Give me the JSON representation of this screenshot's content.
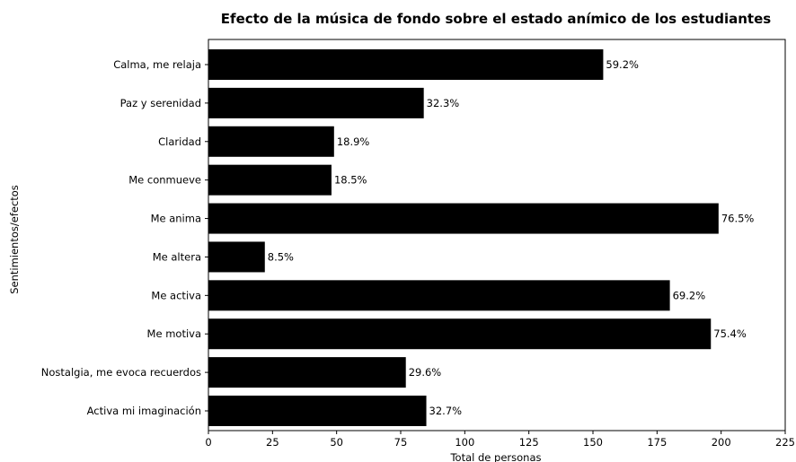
{
  "chart_data": {
    "type": "bar",
    "orientation": "horizontal",
    "title": "Efecto de la música de fondo sobre el estado anímico de los estudiantes",
    "xlabel": "Total de personas",
    "ylabel": "Sentimientos/efectos",
    "xlim": [
      0,
      225
    ],
    "xticks": [
      0,
      25,
      50,
      75,
      100,
      125,
      150,
      175,
      200,
      225
    ],
    "grid": false,
    "bar_color": "#000000",
    "categories": [
      "Calma, me relaja",
      "Paz y serenidad",
      "Claridad",
      "Me conmueve",
      "Me anima",
      "Me altera",
      "Me activa",
      "Me motiva",
      "Nostalgia, me evoca recuerdos",
      "Activa mi imaginación"
    ],
    "values": [
      154,
      84,
      49,
      48,
      199,
      22,
      180,
      196,
      77,
      85
    ],
    "data_labels": [
      "59.2%",
      "32.3%",
      "18.9%",
      "18.5%",
      "76.5%",
      "8.5%",
      "69.2%",
      "75.4%",
      "29.6%",
      "32.7%"
    ]
  }
}
